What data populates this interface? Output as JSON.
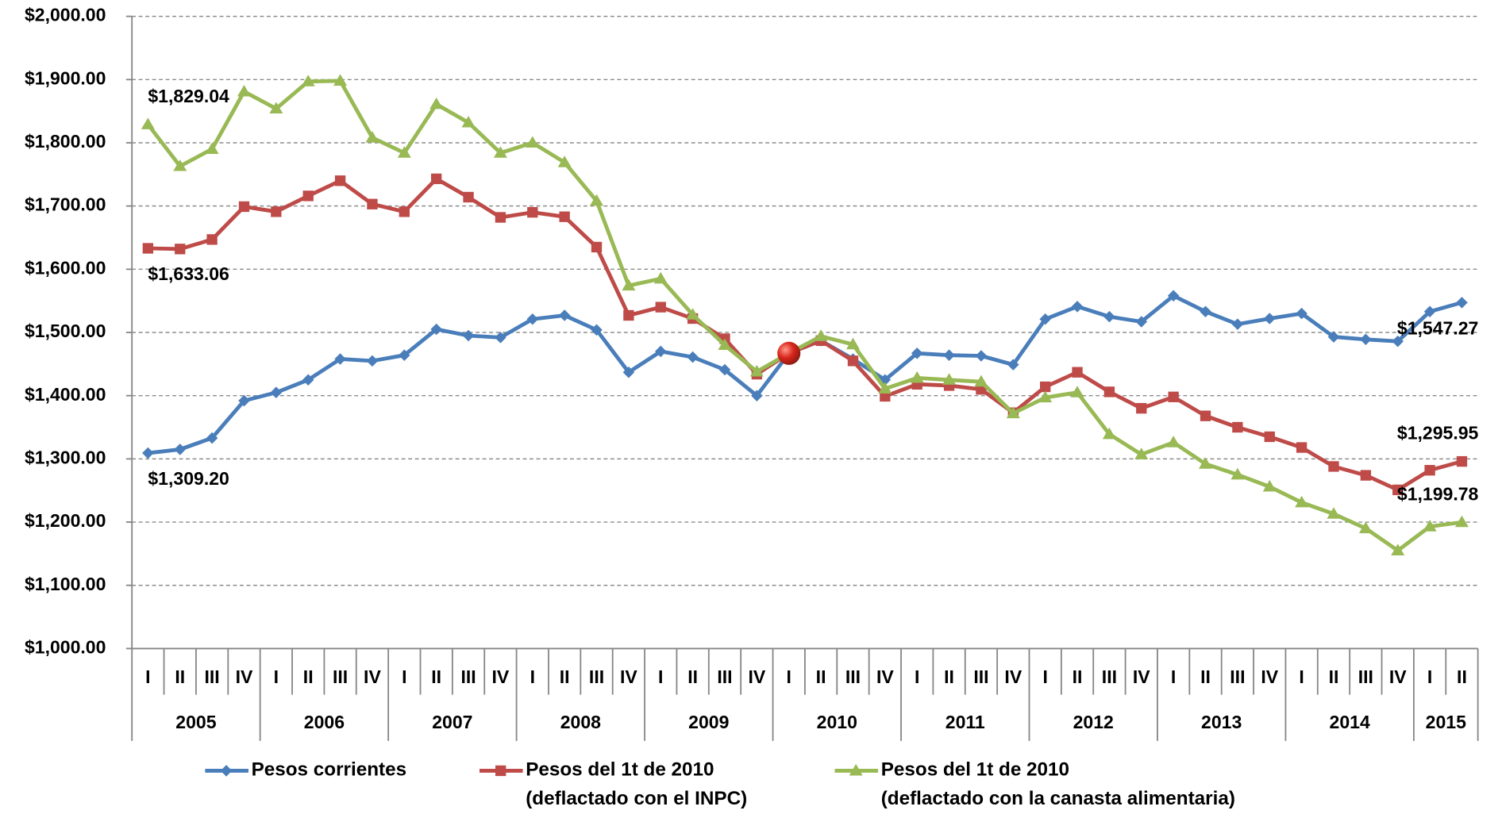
{
  "chart_data": {
    "type": "line",
    "categories": [
      "I",
      "II",
      "III",
      "IV",
      "I",
      "II",
      "III",
      "IV",
      "I",
      "II",
      "III",
      "IV",
      "I",
      "II",
      "III",
      "IV",
      "I",
      "II",
      "III",
      "IV",
      "I",
      "II",
      "III",
      "IV",
      "I",
      "II",
      "III",
      "IV",
      "I",
      "II",
      "III",
      "IV",
      "I",
      "II",
      "III",
      "IV",
      "I",
      "II",
      "III",
      "IV",
      "I",
      "II"
    ],
    "category_years": [
      "2005",
      "2005",
      "2005",
      "2005",
      "2006",
      "2006",
      "2006",
      "2006",
      "2007",
      "2007",
      "2007",
      "2007",
      "2008",
      "2008",
      "2008",
      "2008",
      "2009",
      "2009",
      "2009",
      "2009",
      "2010",
      "2010",
      "2010",
      "2010",
      "2011",
      "2011",
      "2011",
      "2011",
      "2012",
      "2012",
      "2012",
      "2012",
      "2013",
      "2013",
      "2013",
      "2013",
      "2014",
      "2014",
      "2014",
      "2014",
      "2015",
      "2015"
    ],
    "ylim": [
      1000,
      2000
    ],
    "yticks": [
      {
        "value": 1000,
        "label": "$1,000.00"
      },
      {
        "value": 1100,
        "label": "$1,100.00"
      },
      {
        "value": 1200,
        "label": "$1,200.00"
      },
      {
        "value": 1300,
        "label": "$1,300.00"
      },
      {
        "value": 1400,
        "label": "$1,400.00"
      },
      {
        "value": 1500,
        "label": "$1,500.00"
      },
      {
        "value": 1600,
        "label": "$1,600.00"
      },
      {
        "value": 1700,
        "label": "$1,700.00"
      },
      {
        "value": 1800,
        "label": "$1,800.00"
      },
      {
        "value": 1900,
        "label": "$1,900.00"
      },
      {
        "value": 2000,
        "label": "$2,000.00"
      }
    ],
    "grid": true,
    "series": [
      {
        "name": "Pesos corrientes",
        "color": "#4a7ebb",
        "marker": "diamond",
        "values": [
          1309.2,
          1315,
          1333,
          1392,
          1405,
          1425,
          1458,
          1455,
          1464,
          1505,
          1495,
          1492,
          1521,
          1527,
          1504,
          1437,
          1470,
          1461,
          1441,
          1400,
          1467,
          1487,
          1458,
          1425,
          1467,
          1464,
          1463,
          1449,
          1521,
          1541,
          1525,
          1517,
          1558,
          1533,
          1513,
          1522,
          1530,
          1493,
          1489,
          1486,
          1533,
          1547.27
        ],
        "value_labels": [
          "$1,309.20",
          null,
          null,
          null,
          null,
          null,
          null,
          null,
          null,
          null,
          null,
          null,
          null,
          null,
          null,
          null,
          null,
          null,
          null,
          null,
          null,
          null,
          null,
          null,
          null,
          null,
          null,
          null,
          null,
          null,
          null,
          null,
          null,
          null,
          null,
          null,
          null,
          null,
          null,
          null,
          null,
          "$1,547.27"
        ]
      },
      {
        "name": "Pesos del 1t  de 2010\n(deflactado con el INPC)",
        "color": "#be4b48",
        "marker": "square",
        "values": [
          1633.06,
          1632,
          1647,
          1699,
          1691,
          1716,
          1740,
          1703,
          1691,
          1743,
          1714,
          1682,
          1690,
          1683,
          1635,
          1527,
          1540,
          1522,
          1490,
          1434,
          1467,
          1487,
          1455,
          1399,
          1418,
          1416,
          1410,
          1373,
          1414,
          1437,
          1406,
          1380,
          1398,
          1368,
          1350,
          1335,
          1318,
          1288,
          1274,
          1251,
          1282,
          1295.95
        ],
        "value_labels": [
          "$1,633.06",
          null,
          null,
          null,
          null,
          null,
          null,
          null,
          null,
          null,
          null,
          null,
          null,
          null,
          null,
          null,
          null,
          null,
          null,
          null,
          null,
          null,
          null,
          null,
          null,
          null,
          null,
          null,
          null,
          null,
          null,
          null,
          null,
          null,
          null,
          null,
          null,
          null,
          null,
          null,
          null,
          "$1,295.95"
        ]
      },
      {
        "name": "Pesos del 1t de 2010\n(deflactado con la canasta alimentaria)",
        "color": "#98b954",
        "marker": "triangle",
        "values": [
          1829.04,
          1763,
          1790,
          1881,
          1854,
          1897,
          1898,
          1808,
          1784,
          1861,
          1832,
          1784,
          1800,
          1769,
          1708,
          1574,
          1585,
          1528,
          1480,
          1438,
          1467,
          1494,
          1481,
          1411,
          1428,
          1425,
          1422,
          1372,
          1397,
          1405,
          1339,
          1307,
          1326,
          1292,
          1275,
          1256,
          1231,
          1213,
          1190,
          1155,
          1193,
          1199.78
        ],
        "value_labels": [
          "$1,829.04",
          null,
          null,
          null,
          null,
          null,
          null,
          null,
          null,
          null,
          null,
          null,
          null,
          null,
          null,
          null,
          null,
          null,
          null,
          null,
          null,
          null,
          null,
          null,
          null,
          null,
          null,
          null,
          null,
          null,
          null,
          null,
          null,
          null,
          null,
          null,
          null,
          null,
          null,
          null,
          null,
          "$1,199.78"
        ]
      }
    ]
  }
}
